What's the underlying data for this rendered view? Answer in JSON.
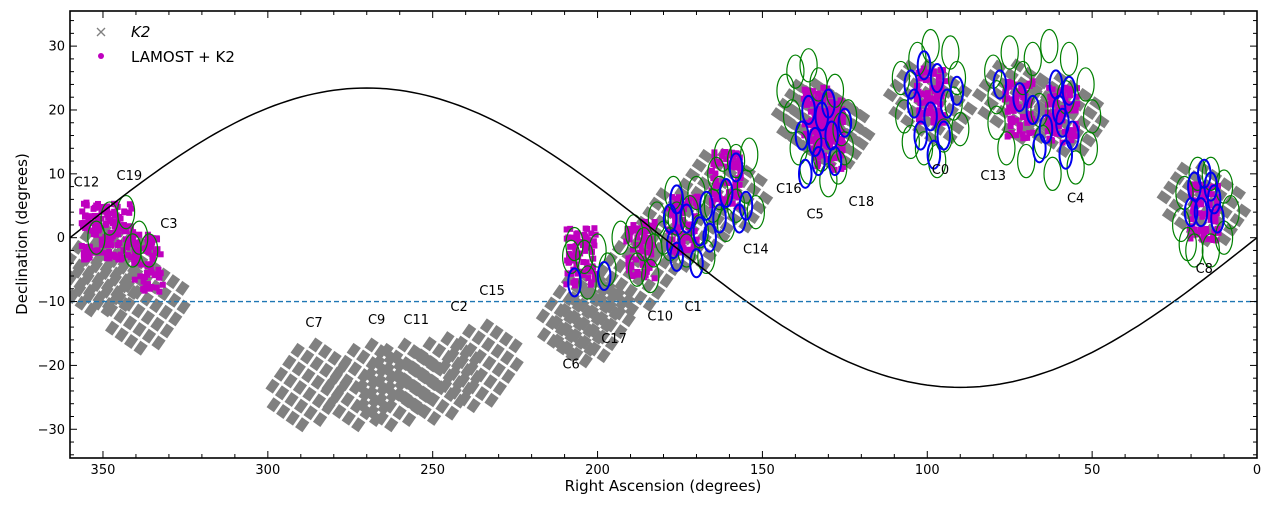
{
  "chart_data": {
    "type": "scatter",
    "title": "",
    "xlabel": "Right Ascension (degrees)",
    "ylabel": "Declination (degrees)",
    "xlim": [
      360,
      0
    ],
    "ylim": [
      -34.5,
      35.5
    ],
    "x_ticks": [
      350,
      300,
      250,
      200,
      150,
      100,
      50,
      0
    ],
    "y_ticks": [
      30,
      20,
      10,
      0,
      -10,
      -20,
      -30
    ],
    "x_tick_labels": [
      "350",
      "300",
      "250",
      "200",
      "150",
      "100",
      "50",
      "0"
    ],
    "y_tick_labels": [
      "30",
      "20",
      "10",
      "0",
      "−10",
      "−20",
      "−30"
    ],
    "legend": {
      "placement": "top-left",
      "entries": [
        {
          "label": "K2",
          "marker": "x",
          "color": "#808080"
        },
        {
          "label": "LAMOST + K2",
          "marker": "dot",
          "color": "#bf00bf"
        }
      ]
    },
    "reference_line": {
      "dec": -10,
      "style": "dashed",
      "color": "#1f77b4"
    },
    "ecliptic_amplitude_deg": 23.44,
    "series": [
      {
        "name": "K2",
        "marker": "x",
        "color": "#808080",
        "fields": [
          {
            "campaign": "C12",
            "ra": 351,
            "dec": -5
          },
          {
            "campaign": "C19",
            "ra": 346,
            "dec": -5
          },
          {
            "campaign": "C3",
            "ra": 336,
            "dec": -11
          },
          {
            "campaign": "C7",
            "ra": 287,
            "dec": -23
          },
          {
            "campaign": "C9",
            "ra": 270,
            "dec": -23
          },
          {
            "campaign": "C11",
            "ra": 260,
            "dec": -23
          },
          {
            "campaign": "C2",
            "ra": 247,
            "dec": -22
          },
          {
            "campaign": "C15",
            "ra": 235,
            "dec": -20
          },
          {
            "campaign": "C6",
            "ra": 205,
            "dec": -12
          },
          {
            "campaign": "C17",
            "ra": 201,
            "dec": -13
          },
          {
            "campaign": "C10",
            "ra": 187,
            "dec": -5
          },
          {
            "campaign": "C1",
            "ra": 174,
            "dec": 1
          },
          {
            "campaign": "C14",
            "ra": 161,
            "dec": 7
          },
          {
            "campaign": "C16",
            "ra": 133,
            "dec": 18
          },
          {
            "campaign": "C5",
            "ra": 130,
            "dec": 17
          },
          {
            "campaign": "C18",
            "ra": 130,
            "dec": 17
          },
          {
            "campaign": "C0",
            "ra": 99,
            "dec": 21
          },
          {
            "campaign": "C13",
            "ra": 72,
            "dec": 21
          },
          {
            "campaign": "C4",
            "ra": 59,
            "dec": 19
          },
          {
            "campaign": "C8",
            "ra": 16,
            "dec": 5
          }
        ]
      },
      {
        "name": "LAMOST + K2",
        "marker": "dot",
        "color": "#bf00bf",
        "fields": [
          {
            "campaign": "C12",
            "ra": 352,
            "dec": 1
          },
          {
            "campaign": "C19",
            "ra": 345,
            "dec": 1
          },
          {
            "campaign": "C3",
            "ra": 336,
            "dec": -4
          },
          {
            "campaign": "C6",
            "ra": 205,
            "dec": -3
          },
          {
            "campaign": "C10",
            "ra": 187,
            "dec": -2
          },
          {
            "campaign": "C1",
            "ra": 174,
            "dec": 2
          },
          {
            "campaign": "C14",
            "ra": 161,
            "dec": 9
          },
          {
            "campaign": "C16",
            "ra": 133,
            "dec": 19
          },
          {
            "campaign": "C5",
            "ra": 130,
            "dec": 17
          },
          {
            "campaign": "C18",
            "ra": 130,
            "dec": 15
          },
          {
            "campaign": "C0",
            "ra": 99,
            "dec": 22
          },
          {
            "campaign": "C13",
            "ra": 72,
            "dec": 20
          },
          {
            "campaign": "C4",
            "ra": 59,
            "dec": 19
          },
          {
            "campaign": "C8",
            "ra": 16,
            "dec": 4
          }
        ]
      }
    ],
    "lamost_plates": {
      "green": [
        [
          348,
          3
        ],
        [
          352,
          0
        ],
        [
          343,
          4
        ],
        [
          339,
          0
        ],
        [
          336,
          -2
        ],
        [
          341,
          -2
        ],
        [
          207,
          -1
        ],
        [
          204,
          -3
        ],
        [
          200,
          -2
        ],
        [
          203,
          -7
        ],
        [
          208,
          -3
        ],
        [
          197,
          -5
        ],
        [
          193,
          0
        ],
        [
          189,
          1
        ],
        [
          186,
          -1
        ],
        [
          184,
          -6
        ],
        [
          188,
          -5
        ],
        [
          182,
          3
        ],
        [
          180,
          0
        ],
        [
          183,
          -2
        ],
        [
          176,
          3
        ],
        [
          172,
          4
        ],
        [
          169,
          1
        ],
        [
          173,
          -2
        ],
        [
          167,
          -3
        ],
        [
          178,
          -1
        ],
        [
          170,
          7
        ],
        [
          165,
          5
        ],
        [
          177,
          7
        ],
        [
          162,
          13
        ],
        [
          158,
          12
        ],
        [
          155,
          8
        ],
        [
          158,
          5
        ],
        [
          161,
          2
        ],
        [
          152,
          4
        ],
        [
          163,
          7
        ],
        [
          164,
          10
        ],
        [
          154,
          13
        ],
        [
          140,
          26
        ],
        [
          136,
          27
        ],
        [
          133,
          24
        ],
        [
          128,
          23
        ],
        [
          124,
          19
        ],
        [
          125,
          14
        ],
        [
          127,
          11
        ],
        [
          130,
          9
        ],
        [
          141,
          19
        ],
        [
          139,
          14
        ],
        [
          136,
          11
        ],
        [
          132,
          13
        ],
        [
          143,
          23
        ],
        [
          126,
          17
        ],
        [
          103,
          28
        ],
        [
          99,
          30
        ],
        [
          93,
          29
        ],
        [
          91,
          25
        ],
        [
          92,
          21
        ],
        [
          95,
          16
        ],
        [
          101,
          14
        ],
        [
          107,
          19
        ],
        [
          108,
          25
        ],
        [
          105,
          15
        ],
        [
          97,
          12
        ],
        [
          90,
          17
        ],
        [
          80,
          26
        ],
        [
          75,
          29
        ],
        [
          68,
          28
        ],
        [
          63,
          30
        ],
        [
          57,
          28
        ],
        [
          52,
          24
        ],
        [
          50,
          19
        ],
        [
          51,
          14
        ],
        [
          55,
          11
        ],
        [
          62,
          10
        ],
        [
          70,
          12
        ],
        [
          76,
          14
        ],
        [
          79,
          18
        ],
        [
          79,
          22
        ],
        [
          66,
          20
        ],
        [
          58,
          22
        ],
        [
          71,
          25
        ],
        [
          65,
          15
        ],
        [
          22,
          7
        ],
        [
          18,
          10
        ],
        [
          14,
          10
        ],
        [
          10,
          8
        ],
        [
          8,
          4
        ],
        [
          10,
          0
        ],
        [
          14,
          -2
        ],
        [
          19,
          -2
        ],
        [
          23,
          2
        ],
        [
          21,
          -1
        ]
      ],
      "blue": [
        [
          207,
          -7
        ],
        [
          198,
          -6
        ],
        [
          176,
          6
        ],
        [
          173,
          3
        ],
        [
          169,
          1
        ],
        [
          166,
          0
        ],
        [
          177,
          -1
        ],
        [
          170,
          -4
        ],
        [
          176,
          -3
        ],
        [
          167,
          5
        ],
        [
          178,
          3
        ],
        [
          158,
          11
        ],
        [
          161,
          7
        ],
        [
          157,
          3
        ],
        [
          163,
          3
        ],
        [
          155,
          5
        ],
        [
          136,
          20
        ],
        [
          132,
          19
        ],
        [
          129,
          16
        ],
        [
          128,
          12
        ],
        [
          133,
          12
        ],
        [
          138,
          16
        ],
        [
          125,
          18
        ],
        [
          134,
          15
        ],
        [
          137,
          10
        ],
        [
          130,
          21
        ],
        [
          101,
          27
        ],
        [
          97,
          25
        ],
        [
          94,
          21
        ],
        [
          99,
          19
        ],
        [
          104,
          21
        ],
        [
          95,
          16
        ],
        [
          102,
          16
        ],
        [
          98,
          13
        ],
        [
          91,
          23
        ],
        [
          105,
          24
        ],
        [
          78,
          24
        ],
        [
          72,
          22
        ],
        [
          68,
          20
        ],
        [
          64,
          17
        ],
        [
          60,
          20
        ],
        [
          57,
          23
        ],
        [
          56,
          16
        ],
        [
          58,
          13
        ],
        [
          61,
          24
        ],
        [
          59,
          18
        ],
        [
          66,
          14
        ],
        [
          19,
          8
        ],
        [
          16,
          10
        ],
        [
          13,
          6
        ],
        [
          12,
          3
        ],
        [
          17,
          4
        ],
        [
          20,
          4
        ],
        [
          14,
          8
        ]
      ]
    },
    "campaign_labels": [
      {
        "text": "C12",
        "ra": 355,
        "dec": 8
      },
      {
        "text": "C19",
        "ra": 342,
        "dec": 9
      },
      {
        "text": "C3",
        "ra": 330,
        "dec": 1.5
      },
      {
        "text": "C7",
        "ra": 286,
        "dec": -14
      },
      {
        "text": "C9",
        "ra": 267,
        "dec": -13.5
      },
      {
        "text": "C11",
        "ra": 255,
        "dec": -13.5
      },
      {
        "text": "C2",
        "ra": 242,
        "dec": -11.5
      },
      {
        "text": "C15",
        "ra": 232,
        "dec": -9
      },
      {
        "text": "C6",
        "ra": 208,
        "dec": -20.5
      },
      {
        "text": "C17",
        "ra": 195,
        "dec": -16.5
      },
      {
        "text": "C10",
        "ra": 181,
        "dec": -13
      },
      {
        "text": "C1",
        "ra": 171,
        "dec": -11.5
      },
      {
        "text": "C14",
        "ra": 152,
        "dec": -2.5
      },
      {
        "text": "C16",
        "ra": 142,
        "dec": 7
      },
      {
        "text": "C5",
        "ra": 134,
        "dec": 3
      },
      {
        "text": "C18",
        "ra": 120,
        "dec": 5
      },
      {
        "text": "C0",
        "ra": 96,
        "dec": 10
      },
      {
        "text": "C13",
        "ra": 80,
        "dec": 9
      },
      {
        "text": "C4",
        "ra": 55,
        "dec": 5.5
      },
      {
        "text": "C8",
        "ra": 16,
        "dec": -5.5
      }
    ]
  }
}
